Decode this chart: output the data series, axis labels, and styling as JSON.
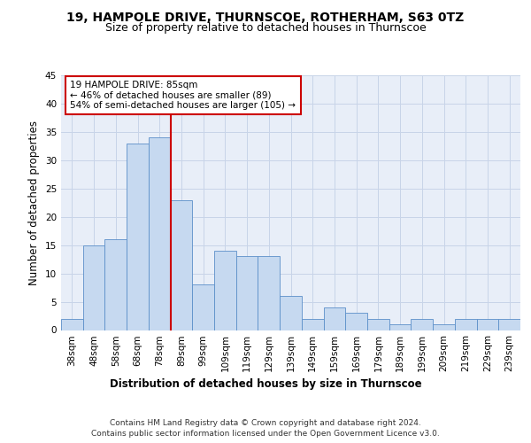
{
  "title": "19, HAMPOLE DRIVE, THURNSCOE, ROTHERHAM, S63 0TZ",
  "subtitle": "Size of property relative to detached houses in Thurnscoe",
  "xlabel": "Distribution of detached houses by size in Thurnscoe",
  "ylabel": "Number of detached properties",
  "categories": [
    "38sqm",
    "48sqm",
    "58sqm",
    "68sqm",
    "78sqm",
    "89sqm",
    "99sqm",
    "109sqm",
    "119sqm",
    "129sqm",
    "139sqm",
    "149sqm",
    "159sqm",
    "169sqm",
    "179sqm",
    "189sqm",
    "199sqm",
    "209sqm",
    "219sqm",
    "229sqm",
    "239sqm"
  ],
  "values": [
    2,
    15,
    16,
    33,
    34,
    23,
    8,
    14,
    13,
    13,
    6,
    2,
    4,
    3,
    2,
    1,
    2,
    1,
    2,
    2,
    2
  ],
  "bar_color": "#c6d9f0",
  "bar_edge_color": "#5b8fc9",
  "red_line_x": 4.5,
  "annotation_text_line1": "19 HAMPOLE DRIVE: 85sqm",
  "annotation_text_line2": "← 46% of detached houses are smaller (89)",
  "annotation_text_line3": "54% of semi-detached houses are larger (105) →",
  "annotation_box_color": "#ffffff",
  "annotation_box_edge": "#cc0000",
  "red_line_color": "#cc0000",
  "grid_color": "#c8d4e8",
  "background_color": "#e8eef8",
  "ylim": [
    0,
    45
  ],
  "yticks": [
    0,
    5,
    10,
    15,
    20,
    25,
    30,
    35,
    40,
    45
  ],
  "footer_line1": "Contains HM Land Registry data © Crown copyright and database right 2024.",
  "footer_line2": "Contains public sector information licensed under the Open Government Licence v3.0.",
  "title_fontsize": 10,
  "subtitle_fontsize": 9,
  "axis_label_fontsize": 8.5,
  "tick_fontsize": 7.5,
  "annotation_fontsize": 7.5,
  "footer_fontsize": 6.5
}
